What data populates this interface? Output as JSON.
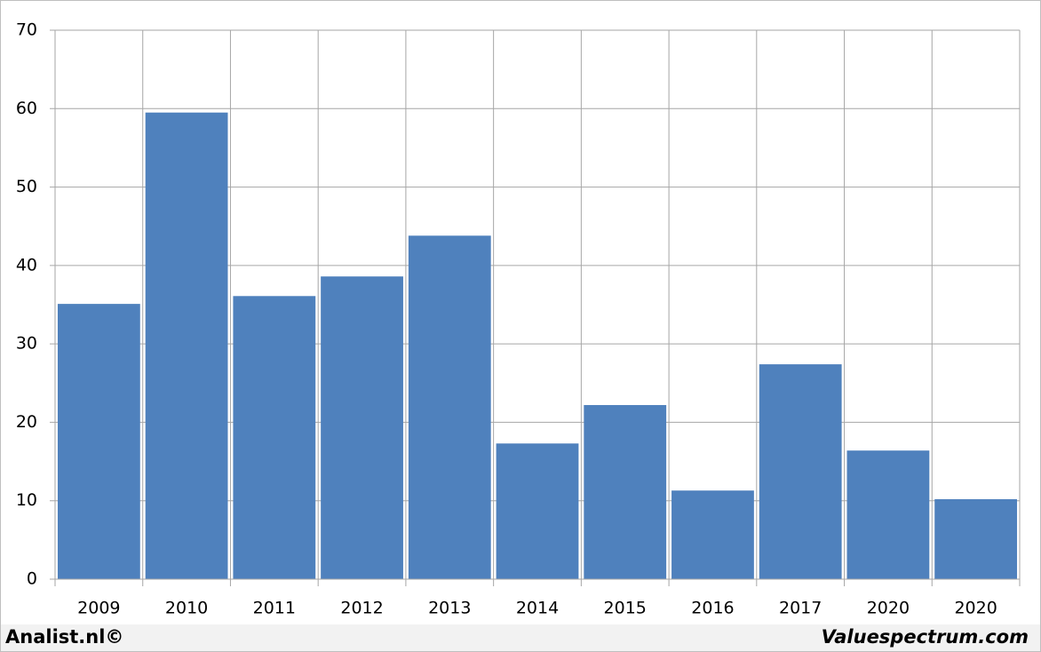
{
  "chart_data": {
    "type": "bar",
    "categories": [
      "2009",
      "2010",
      "2011",
      "2012",
      "2013",
      "2014",
      "2015",
      "2016",
      "2017",
      "2020",
      "2020"
    ],
    "values": [
      35.1,
      59.5,
      36.1,
      38.6,
      43.8,
      17.3,
      22.2,
      11.3,
      27.4,
      16.4,
      10.2
    ],
    "color": "#4f81bd",
    "ylim": [
      0,
      70
    ],
    "yticks": [
      0,
      10,
      20,
      30,
      40,
      50,
      60,
      70
    ],
    "grid": true
  },
  "footer": {
    "left": "Analist.nl©",
    "right": "Valuespectrum.com"
  }
}
